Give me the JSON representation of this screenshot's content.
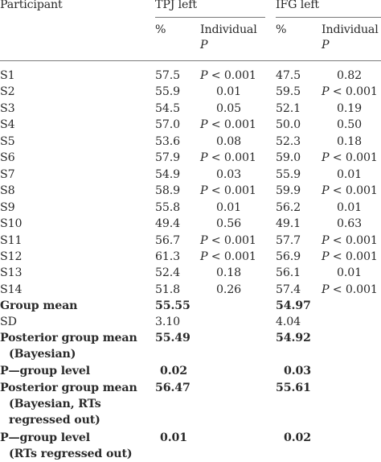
{
  "table": {
    "headers": {
      "participant": "Participant",
      "groups": [
        "TPJ left",
        "IFG left"
      ],
      "percent": "%",
      "individual": "Individual",
      "p": "P"
    },
    "rows": [
      {
        "label": "S1",
        "tpj_pct": "57.5",
        "tpj_p": "P < 0.001",
        "ifg_pct": "47.5",
        "ifg_p": "0.82"
      },
      {
        "label": "S2",
        "tpj_pct": "55.9",
        "tpj_p": "0.01",
        "ifg_pct": "59.5",
        "ifg_p": "P < 0.001"
      },
      {
        "label": "S3",
        "tpj_pct": "54.5",
        "tpj_p": "0.05",
        "ifg_pct": "52.1",
        "ifg_p": "0.19"
      },
      {
        "label": "S4",
        "tpj_pct": "57.0",
        "tpj_p": "P < 0.001",
        "ifg_pct": "50.0",
        "ifg_p": "0.50"
      },
      {
        "label": "S5",
        "tpj_pct": "53.6",
        "tpj_p": "0.08",
        "ifg_pct": "52.3",
        "ifg_p": "0.18"
      },
      {
        "label": "S6",
        "tpj_pct": "57.9",
        "tpj_p": "P < 0.001",
        "ifg_pct": "59.0",
        "ifg_p": "P < 0.001"
      },
      {
        "label": "S7",
        "tpj_pct": "54.9",
        "tpj_p": "0.03",
        "ifg_pct": "55.9",
        "ifg_p": "0.01"
      },
      {
        "label": "S8",
        "tpj_pct": "58.9",
        "tpj_p": "P < 0.001",
        "ifg_pct": "59.9",
        "ifg_p": "P < 0.001"
      },
      {
        "label": "S9",
        "tpj_pct": "55.8",
        "tpj_p": "0.01",
        "ifg_pct": "56.2",
        "ifg_p": "0.01"
      },
      {
        "label": "S10",
        "tpj_pct": "49.4",
        "tpj_p": "0.56",
        "ifg_pct": "49.1",
        "ifg_p": "0.63"
      },
      {
        "label": "S11",
        "tpj_pct": "56.7",
        "tpj_p": "P < 0.001",
        "ifg_pct": "57.7",
        "ifg_p": "P < 0.001"
      },
      {
        "label": "S12",
        "tpj_pct": "61.3",
        "tpj_p": "P < 0.001",
        "ifg_pct": "56.9",
        "ifg_p": "P < 0.001"
      },
      {
        "label": "S13",
        "tpj_pct": "52.4",
        "tpj_p": "0.18",
        "ifg_pct": "56.1",
        "ifg_p": "0.01"
      },
      {
        "label": "S14",
        "tpj_pct": "51.8",
        "tpj_p": "0.26",
        "ifg_pct": "57.4",
        "ifg_p": "P < 0.001"
      }
    ],
    "summary": {
      "group_mean": {
        "label": "Group mean",
        "tpj": "55.55",
        "ifg": "54.97"
      },
      "sd": {
        "label": "SD",
        "tpj": "3.10",
        "ifg": "4.04"
      },
      "posterior": {
        "label1": "Posterior group mean",
        "label2": "(Bayesian)",
        "tpj": "55.49",
        "ifg": "54.92"
      },
      "p_group": {
        "label": "P—group level",
        "tpj": "0.02",
        "ifg": "0.03"
      },
      "posterior_rt": {
        "label1": "Posterior group mean",
        "label2": "(Bayesian, RTs",
        "label3": "regressed out)",
        "tpj": "56.47",
        "ifg": "55.61"
      },
      "p_group_rt": {
        "label1": "P—group level",
        "label2": "(RTs regressed out)",
        "tpj": "0.01",
        "ifg": "0.02"
      }
    }
  }
}
